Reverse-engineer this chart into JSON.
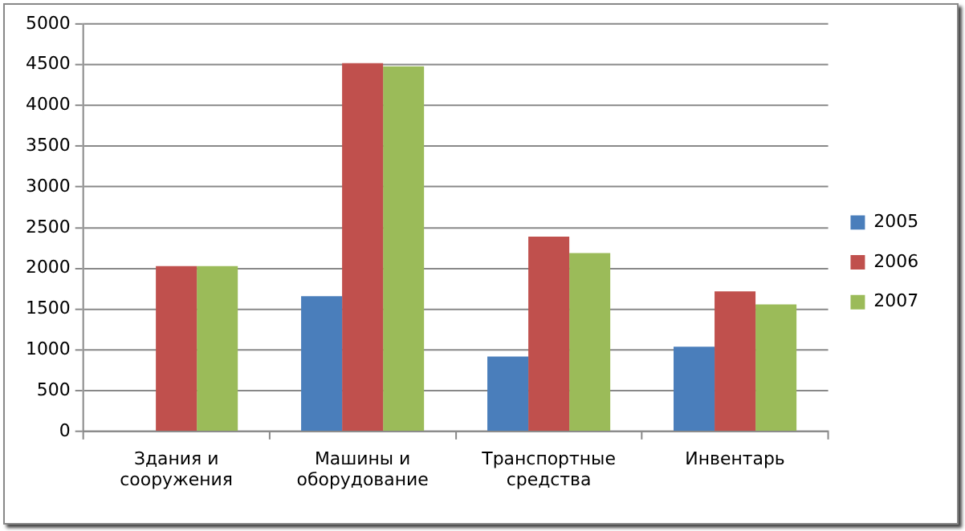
{
  "chart_data": {
    "type": "bar",
    "categories": [
      "Здания и сооружения",
      "Машины и оборудование",
      "Транспортные средства",
      "Инвентарь"
    ],
    "series": [
      {
        "name": "2005",
        "color": "#4a7ebb",
        "values": [
          null,
          1660,
          920,
          1040
        ]
      },
      {
        "name": "2006",
        "color": "#c0504d",
        "values": [
          2030,
          4520,
          2390,
          1720
        ]
      },
      {
        "name": "2007",
        "color": "#9bbb59",
        "values": [
          2030,
          4480,
          2190,
          1560
        ]
      }
    ],
    "ylim": [
      0,
      5000
    ],
    "yticks": [
      0,
      500,
      1000,
      1500,
      2000,
      2500,
      3000,
      3500,
      4000,
      4500,
      5000
    ],
    "grid": "y",
    "legend": "right"
  }
}
